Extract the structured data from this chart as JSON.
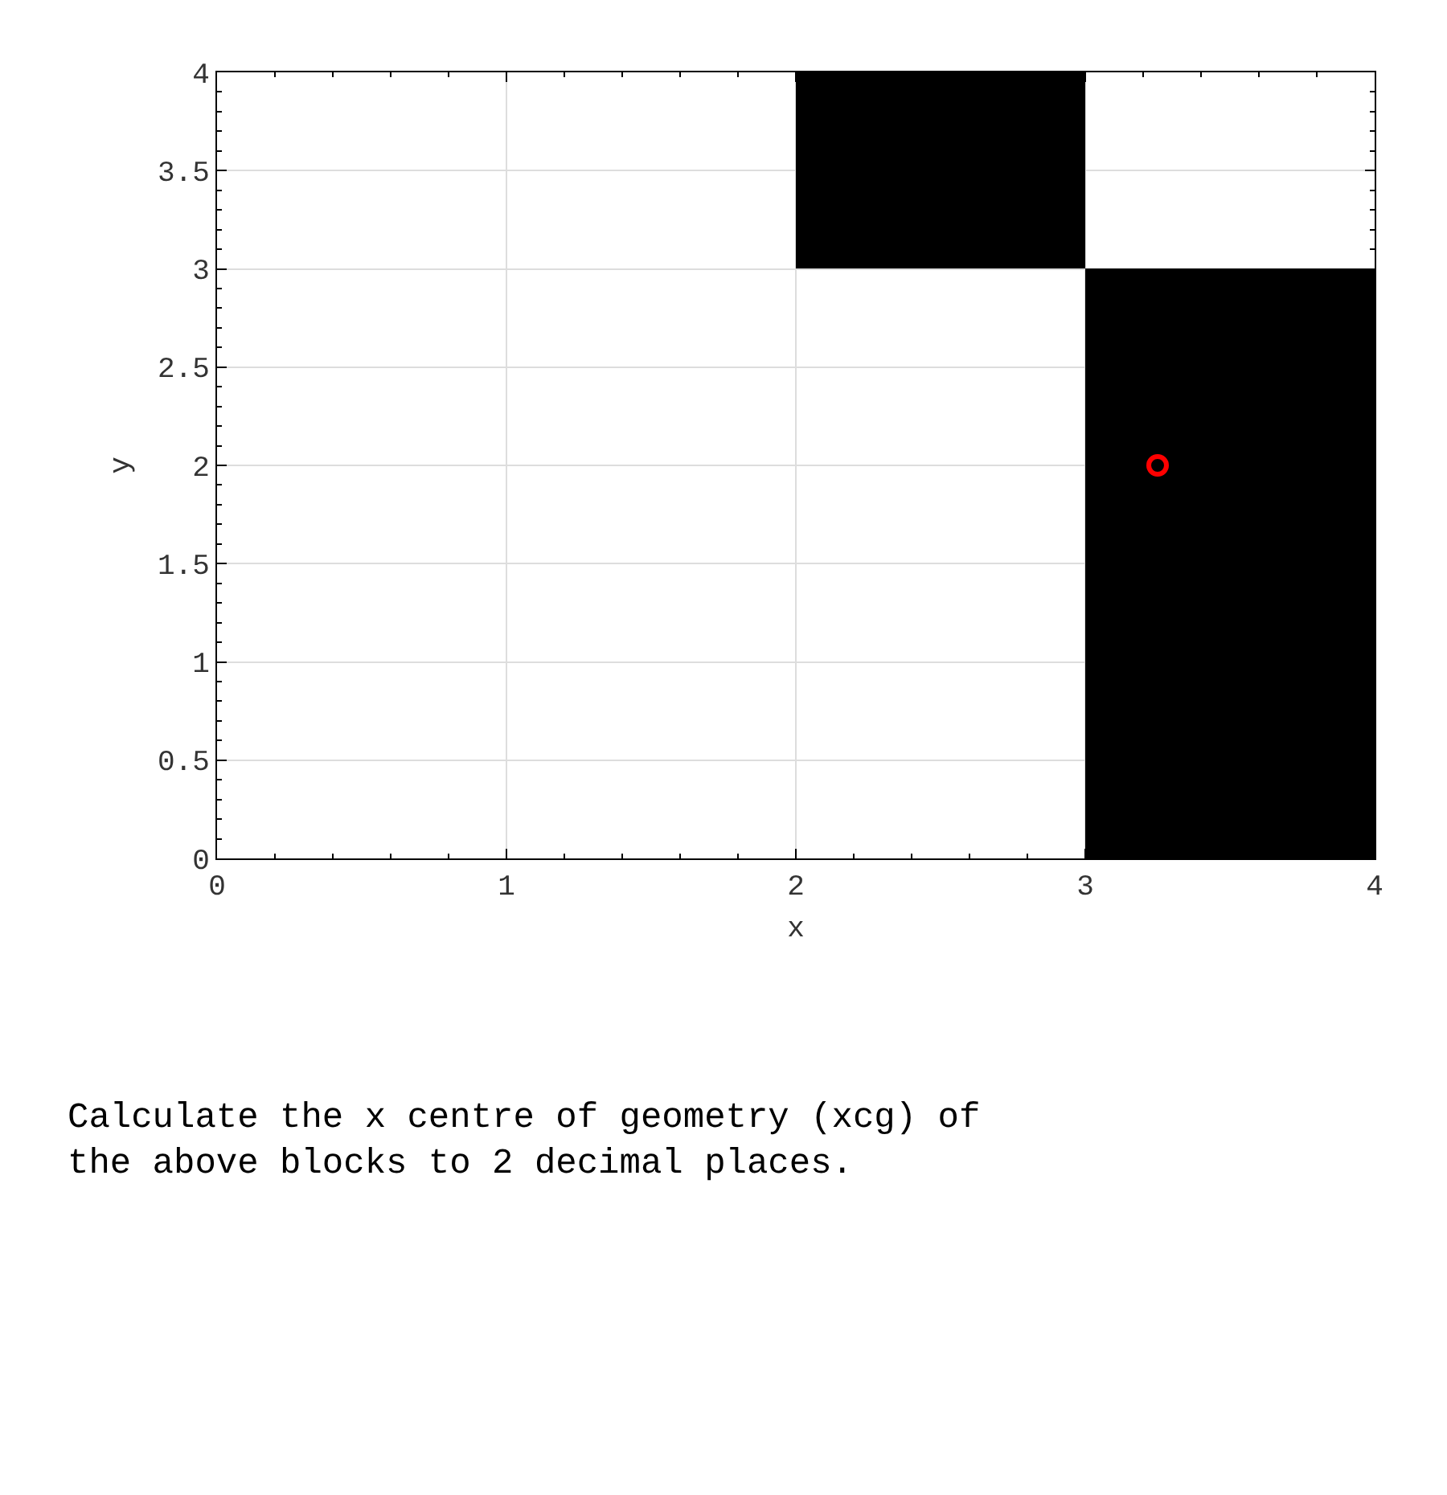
{
  "chart_data": {
    "type": "bar",
    "xlabel": "x",
    "ylabel": "y",
    "x": [
      2.5,
      3.5
    ],
    "series": [
      {
        "color": "#000000",
        "values": [
          1,
          3
        ],
        "base": [
          3,
          0
        ]
      },
      {
        "type": "scatter",
        "color": "#ff0000",
        "x": [
          3.25
        ],
        "values": [
          2
        ],
        "marker": "circle"
      }
    ],
    "xlim": [
      0,
      4
    ],
    "xticks": [
      0,
      1,
      2,
      3,
      4
    ],
    "ylim": [
      0,
      4
    ],
    "yticks": [
      0,
      0.5,
      1,
      1.5,
      2,
      2.5,
      3,
      3.5,
      4
    ],
    "grid": true,
    "annotations": [
      "Calculate the x centre of geometry (xcg) of\nthe above blocks to 2 decimal places."
    ]
  }
}
